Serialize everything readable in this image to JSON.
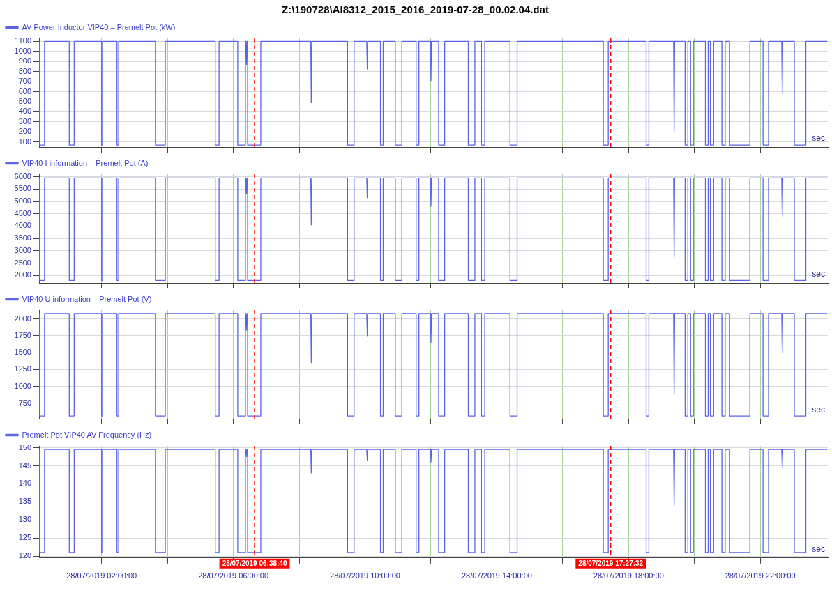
{
  "chart_data": [
    {
      "type": "line",
      "title": "Z:\\190728\\AI8312_2015_2016_2019-07-28_00.02.04.dat",
      "legend": "top left",
      "grid": true,
      "marker": "none",
      "tick_labels": "y",
      "xlim": [
        "2019-07-28T00:06",
        "2019-07-29T00:03"
      ],
      "ylim": [
        50,
        1130
      ],
      "yticks": [
        100,
        200,
        300,
        400,
        500,
        600,
        700,
        800,
        900,
        1000,
        1100
      ],
      "xticks": [
        {
          "value": "2019-07-28T02:00",
          "label": null
        },
        {
          "value": "2019-07-28T04:00",
          "label": null
        },
        {
          "value": "2019-07-28T06:00",
          "label": null
        },
        {
          "value": "2019-07-28T08:00",
          "label": null
        },
        {
          "value": "2019-07-28T10:00",
          "label": null
        },
        {
          "value": "2019-07-28T12:00",
          "label": null
        },
        {
          "value": "2019-07-28T14:00",
          "label": null
        },
        {
          "value": "2019-07-28T16:00",
          "label": null
        },
        {
          "value": "2019-07-28T18:00",
          "label": null
        },
        {
          "value": "2019-07-28T20:00",
          "label": null
        },
        {
          "value": "2019-07-28T22:00",
          "label": null
        }
      ],
      "ref_lines": [
        {
          "axis": "x",
          "value": "2019-07-28T06:38:40",
          "color": "#ff0000",
          "line_style": "dashed"
        },
        {
          "axis": "x",
          "value": "2019-07-28T17:27:32",
          "color": "#ff0000",
          "line_style": "dashed"
        }
      ],
      "annotations": [
        "sec"
      ],
      "x": [
        "2019-07-28T00:06",
        "2019-07-28T00:07",
        "2019-07-28T00:07",
        "2019-07-28T00:16",
        "2019-07-28T00:16",
        "2019-07-28T01:01",
        "2019-07-28T01:01",
        "2019-07-28T01:10",
        "2019-07-28T01:10",
        "2019-07-28T02:00",
        "2019-07-28T02:00",
        "2019-07-28T02:02",
        "2019-07-28T02:02",
        "2019-07-28T02:28",
        "2019-07-28T02:28",
        "2019-07-28T02:31",
        "2019-07-28T02:31",
        "2019-07-28T03:38",
        "2019-07-28T03:38",
        "2019-07-28T03:56",
        "2019-07-28T03:56",
        "2019-07-28T05:27",
        "2019-07-28T05:27",
        "2019-07-28T05:34",
        "2019-07-28T05:34",
        "2019-07-28T06:08",
        "2019-07-28T06:08",
        "2019-07-28T06:22",
        "2019-07-28T06:22",
        "2019-07-28T06:23",
        "2019-07-28T06:24",
        "2019-07-28T06:25",
        "2019-07-28T06:26",
        "2019-07-28T06:26",
        "2019-07-28T06:50",
        "2019-07-28T06:50",
        "2019-07-28T08:21",
        "2019-07-28T08:22",
        "2019-07-28T08:23",
        "2019-07-28T09:28",
        "2019-07-28T09:28",
        "2019-07-28T09:40",
        "2019-07-28T09:40",
        "2019-07-28T10:03",
        "2019-07-28T10:04",
        "2019-07-28T10:05",
        "2019-07-28T10:28",
        "2019-07-28T10:28",
        "2019-07-28T10:33",
        "2019-07-28T10:33",
        "2019-07-28T10:55",
        "2019-07-28T10:55",
        "2019-07-28T11:07",
        "2019-07-28T11:07",
        "2019-07-28T11:33",
        "2019-07-28T11:33",
        "2019-07-28T11:38",
        "2019-07-28T11:38",
        "2019-07-28T11:59",
        "2019-07-28T12:00",
        "2019-07-28T12:01",
        "2019-07-28T12:14",
        "2019-07-28T12:14",
        "2019-07-28T12:25",
        "2019-07-28T12:25",
        "2019-07-28T13:08",
        "2019-07-28T13:08",
        "2019-07-28T13:20",
        "2019-07-28T13:20",
        "2019-07-28T13:32",
        "2019-07-28T13:32",
        "2019-07-28T13:38",
        "2019-07-28T13:38",
        "2019-07-28T14:24",
        "2019-07-28T14:24",
        "2019-07-28T14:37",
        "2019-07-28T14:37",
        "2019-07-28T17:14",
        "2019-07-28T17:14",
        "2019-07-28T17:23",
        "2019-07-28T17:23",
        "2019-07-28T18:32",
        "2019-07-28T18:32",
        "2019-07-28T18:37",
        "2019-07-28T18:37",
        "2019-07-28T19:22",
        "2019-07-28T19:23",
        "2019-07-28T19:24",
        "2019-07-28T19:43",
        "2019-07-28T19:43",
        "2019-07-28T19:48",
        "2019-07-28T19:48",
        "2019-07-28T19:53",
        "2019-07-28T19:53",
        "2019-07-28T19:58",
        "2019-07-28T19:58",
        "2019-07-28T20:20",
        "2019-07-28T20:20",
        "2019-07-28T20:25",
        "2019-07-28T20:25",
        "2019-07-28T20:29",
        "2019-07-28T20:29",
        "2019-07-28T20:35",
        "2019-07-28T20:35",
        "2019-07-28T20:50",
        "2019-07-28T20:50",
        "2019-07-28T20:56",
        "2019-07-28T20:56",
        "2019-07-28T21:04",
        "2019-07-28T21:04",
        "2019-07-28T21:41",
        "2019-07-28T21:41",
        "2019-07-28T22:05",
        "2019-07-28T22:05",
        "2019-07-28T22:15",
        "2019-07-28T22:15",
        "2019-07-28T22:39",
        "2019-07-28T22:40",
        "2019-07-28T22:41",
        "2019-07-28T23:02",
        "2019-07-28T23:02",
        "2019-07-28T23:23",
        "2019-07-28T23:23",
        "2019-07-29T00:02"
      ],
      "series": [
        {
          "name": "AV Power Inductor VIP40 – Premelt Pot (kW)",
          "color": "#5b63e6",
          "values": [
            1100,
            1100,
            70,
            70,
            1100,
            1100,
            70,
            70,
            1100,
            1100,
            70,
            70,
            1100,
            1100,
            70,
            70,
            1100,
            1100,
            70,
            70,
            1100,
            1100,
            70,
            70,
            1100,
            1100,
            70,
            70,
            1100,
            1100,
            870,
            1100,
            1100,
            70,
            70,
            1100,
            1100,
            490,
            1100,
            1100,
            70,
            70,
            1100,
            1100,
            825,
            1100,
            1100,
            70,
            70,
            1100,
            1100,
            70,
            70,
            1100,
            1100,
            70,
            70,
            1100,
            1100,
            710,
            1100,
            1100,
            70,
            70,
            1100,
            1100,
            70,
            70,
            1100,
            1100,
            70,
            70,
            1100,
            1100,
            70,
            70,
            1100,
            1100,
            70,
            70,
            1100,
            1100,
            70,
            70,
            1100,
            1100,
            210,
            1100,
            1100,
            70,
            70,
            1100,
            1100,
            70,
            70,
            1100,
            1100,
            70,
            70,
            1100,
            1100,
            70,
            70,
            1100,
            1100,
            70,
            70,
            1100,
            1100,
            70,
            70,
            1100,
            1100,
            70,
            70,
            1100,
            1100,
            580,
            1100,
            1100,
            70,
            70,
            1100,
            1100
          ]
        }
      ]
    },
    {
      "type": "line",
      "legend": "top left",
      "grid": true,
      "marker": "none",
      "tick_labels": "y",
      "xlim": [
        "2019-07-28T00:06",
        "2019-07-29T00:03"
      ],
      "ylim": [
        1700,
        6100
      ],
      "yticks": [
        2000,
        2500,
        3000,
        3500,
        4000,
        4500,
        5000,
        5500,
        6000
      ],
      "xticks": [
        {
          "value": "2019-07-28T02:00",
          "label": null
        },
        {
          "value": "2019-07-28T04:00",
          "label": null
        },
        {
          "value": "2019-07-28T06:00",
          "label": null
        },
        {
          "value": "2019-07-28T08:00",
          "label": null
        },
        {
          "value": "2019-07-28T10:00",
          "label": null
        },
        {
          "value": "2019-07-28T12:00",
          "label": null
        },
        {
          "value": "2019-07-28T14:00",
          "label": null
        },
        {
          "value": "2019-07-28T16:00",
          "label": null
        },
        {
          "value": "2019-07-28T18:00",
          "label": null
        },
        {
          "value": "2019-07-28T20:00",
          "label": null
        },
        {
          "value": "2019-07-28T22:00",
          "label": null
        }
      ],
      "ref_lines": [
        {
          "axis": "x",
          "value": "2019-07-28T06:38:40",
          "color": "#ff0000",
          "line_style": "dashed"
        },
        {
          "axis": "x",
          "value": "2019-07-28T17:27:32",
          "color": "#ff0000",
          "line_style": "dashed"
        }
      ],
      "annotations": [
        "sec"
      ],
      "x": [
        "2019-07-28T00:06",
        "2019-07-28T00:07",
        "2019-07-28T00:07",
        "2019-07-28T00:16",
        "2019-07-28T00:16",
        "2019-07-28T01:01",
        "2019-07-28T01:01",
        "2019-07-28T01:10",
        "2019-07-28T01:10",
        "2019-07-28T02:00",
        "2019-07-28T02:00",
        "2019-07-28T02:02",
        "2019-07-28T02:02",
        "2019-07-28T02:28",
        "2019-07-28T02:28",
        "2019-07-28T02:31",
        "2019-07-28T02:31",
        "2019-07-28T03:38",
        "2019-07-28T03:38",
        "2019-07-28T03:56",
        "2019-07-28T03:56",
        "2019-07-28T05:27",
        "2019-07-28T05:27",
        "2019-07-28T05:34",
        "2019-07-28T05:34",
        "2019-07-28T06:08",
        "2019-07-28T06:08",
        "2019-07-28T06:22",
        "2019-07-28T06:22",
        "2019-07-28T06:23",
        "2019-07-28T06:24",
        "2019-07-28T06:25",
        "2019-07-28T06:26",
        "2019-07-28T06:26",
        "2019-07-28T06:50",
        "2019-07-28T06:50",
        "2019-07-28T08:21",
        "2019-07-28T08:22",
        "2019-07-28T08:23",
        "2019-07-28T09:28",
        "2019-07-28T09:28",
        "2019-07-28T09:40",
        "2019-07-28T09:40",
        "2019-07-28T10:03",
        "2019-07-28T10:04",
        "2019-07-28T10:05",
        "2019-07-28T10:28",
        "2019-07-28T10:28",
        "2019-07-28T10:33",
        "2019-07-28T10:33",
        "2019-07-28T10:55",
        "2019-07-28T10:55",
        "2019-07-28T11:07",
        "2019-07-28T11:07",
        "2019-07-28T11:33",
        "2019-07-28T11:33",
        "2019-07-28T11:38",
        "2019-07-28T11:38",
        "2019-07-28T11:59",
        "2019-07-28T12:00",
        "2019-07-28T12:01",
        "2019-07-28T12:14",
        "2019-07-28T12:14",
        "2019-07-28T12:25",
        "2019-07-28T12:25",
        "2019-07-28T13:08",
        "2019-07-28T13:08",
        "2019-07-28T13:20",
        "2019-07-28T13:20",
        "2019-07-28T13:32",
        "2019-07-28T13:32",
        "2019-07-28T13:38",
        "2019-07-28T13:38",
        "2019-07-28T14:24",
        "2019-07-28T14:24",
        "2019-07-28T14:37",
        "2019-07-28T14:37",
        "2019-07-28T17:14",
        "2019-07-28T17:14",
        "2019-07-28T17:23",
        "2019-07-28T17:23",
        "2019-07-28T18:32",
        "2019-07-28T18:32",
        "2019-07-28T18:37",
        "2019-07-28T18:37",
        "2019-07-28T19:22",
        "2019-07-28T19:23",
        "2019-07-28T19:24",
        "2019-07-28T19:43",
        "2019-07-28T19:43",
        "2019-07-28T19:48",
        "2019-07-28T19:48",
        "2019-07-28T19:53",
        "2019-07-28T19:53",
        "2019-07-28T19:58",
        "2019-07-28T19:58",
        "2019-07-28T20:20",
        "2019-07-28T20:20",
        "2019-07-28T20:25",
        "2019-07-28T20:25",
        "2019-07-28T20:29",
        "2019-07-28T20:29",
        "2019-07-28T20:35",
        "2019-07-28T20:35",
        "2019-07-28T20:50",
        "2019-07-28T20:50",
        "2019-07-28T20:56",
        "2019-07-28T20:56",
        "2019-07-28T21:04",
        "2019-07-28T21:04",
        "2019-07-28T21:41",
        "2019-07-28T21:41",
        "2019-07-28T22:05",
        "2019-07-28T22:05",
        "2019-07-28T22:15",
        "2019-07-28T22:15",
        "2019-07-28T22:39",
        "2019-07-28T22:40",
        "2019-07-28T22:41",
        "2019-07-28T23:02",
        "2019-07-28T23:02",
        "2019-07-28T23:23",
        "2019-07-28T23:23",
        "2019-07-29T00:02"
      ],
      "series": [
        {
          "name": "VIP40 I information – Premelt Pot (A)",
          "color": "#5b63e6",
          "values": [
            5950,
            5950,
            1800,
            1800,
            5950,
            5950,
            1800,
            1800,
            5950,
            5950,
            1800,
            1800,
            5950,
            5950,
            1800,
            1800,
            5950,
            5950,
            1800,
            1800,
            5950,
            5950,
            1800,
            1800,
            5950,
            5950,
            1800,
            1800,
            5950,
            5950,
            5300,
            5950,
            5950,
            1800,
            1800,
            5950,
            5950,
            4050,
            5950,
            5950,
            1800,
            1800,
            5950,
            5950,
            5150,
            5950,
            5950,
            1800,
            1800,
            5950,
            5950,
            1800,
            1800,
            5950,
            5950,
            1800,
            1800,
            5950,
            5950,
            4800,
            5950,
            5950,
            1800,
            1800,
            5950,
            5950,
            1800,
            1800,
            5950,
            5950,
            1800,
            1800,
            5950,
            5950,
            1800,
            1800,
            5950,
            5950,
            1800,
            1800,
            5950,
            5950,
            1800,
            1800,
            5950,
            5950,
            2750,
            5950,
            5950,
            1800,
            1800,
            5950,
            5950,
            1800,
            1800,
            5950,
            5950,
            1800,
            1800,
            5950,
            5950,
            1800,
            1800,
            5950,
            5950,
            1800,
            1800,
            5950,
            5950,
            1800,
            1800,
            5950,
            5950,
            1800,
            1800,
            5950,
            5950,
            4400,
            5950,
            5950,
            1800,
            1800,
            5950,
            5950
          ]
        }
      ]
    },
    {
      "type": "line",
      "legend": "top left",
      "grid": true,
      "marker": "none",
      "tick_labels": "y",
      "xlim": [
        "2019-07-28T00:06",
        "2019-07-29T00:03"
      ],
      "ylim": [
        520,
        2130
      ],
      "yticks": [
        750,
        1000,
        1250,
        1500,
        1750,
        2000
      ],
      "xticks": [
        {
          "value": "2019-07-28T02:00",
          "label": null
        },
        {
          "value": "2019-07-28T04:00",
          "label": null
        },
        {
          "value": "2019-07-28T06:00",
          "label": null
        },
        {
          "value": "2019-07-28T08:00",
          "label": null
        },
        {
          "value": "2019-07-28T10:00",
          "label": null
        },
        {
          "value": "2019-07-28T12:00",
          "label": null
        },
        {
          "value": "2019-07-28T14:00",
          "label": null
        },
        {
          "value": "2019-07-28T16:00",
          "label": null
        },
        {
          "value": "2019-07-28T18:00",
          "label": null
        },
        {
          "value": "2019-07-28T20:00",
          "label": null
        },
        {
          "value": "2019-07-28T22:00",
          "label": null
        }
      ],
      "ref_lines": [
        {
          "axis": "x",
          "value": "2019-07-28T06:38:40",
          "color": "#ff0000",
          "line_style": "dashed"
        },
        {
          "axis": "x",
          "value": "2019-07-28T17:27:32",
          "color": "#ff0000",
          "line_style": "dashed"
        }
      ],
      "annotations": [
        "sec"
      ],
      "x": [
        "2019-07-28T00:06",
        "2019-07-28T00:07",
        "2019-07-28T00:07",
        "2019-07-28T00:16",
        "2019-07-28T00:16",
        "2019-07-28T01:01",
        "2019-07-28T01:01",
        "2019-07-28T01:10",
        "2019-07-28T01:10",
        "2019-07-28T02:00",
        "2019-07-28T02:00",
        "2019-07-28T02:02",
        "2019-07-28T02:02",
        "2019-07-28T02:28",
        "2019-07-28T02:28",
        "2019-07-28T02:31",
        "2019-07-28T02:31",
        "2019-07-28T03:38",
        "2019-07-28T03:38",
        "2019-07-28T03:56",
        "2019-07-28T03:56",
        "2019-07-28T05:27",
        "2019-07-28T05:27",
        "2019-07-28T05:34",
        "2019-07-28T05:34",
        "2019-07-28T06:08",
        "2019-07-28T06:08",
        "2019-07-28T06:22",
        "2019-07-28T06:22",
        "2019-07-28T06:23",
        "2019-07-28T06:24",
        "2019-07-28T06:25",
        "2019-07-28T06:26",
        "2019-07-28T06:26",
        "2019-07-28T06:50",
        "2019-07-28T06:50",
        "2019-07-28T08:21",
        "2019-07-28T08:22",
        "2019-07-28T08:23",
        "2019-07-28T09:28",
        "2019-07-28T09:28",
        "2019-07-28T09:40",
        "2019-07-28T09:40",
        "2019-07-28T10:03",
        "2019-07-28T10:04",
        "2019-07-28T10:05",
        "2019-07-28T10:28",
        "2019-07-28T10:28",
        "2019-07-28T10:33",
        "2019-07-28T10:33",
        "2019-07-28T10:55",
        "2019-07-28T10:55",
        "2019-07-28T11:07",
        "2019-07-28T11:07",
        "2019-07-28T11:33",
        "2019-07-28T11:33",
        "2019-07-28T11:38",
        "2019-07-28T11:38",
        "2019-07-28T11:59",
        "2019-07-28T12:00",
        "2019-07-28T12:01",
        "2019-07-28T12:14",
        "2019-07-28T12:14",
        "2019-07-28T12:25",
        "2019-07-28T12:25",
        "2019-07-28T13:08",
        "2019-07-28T13:08",
        "2019-07-28T13:20",
        "2019-07-28T13:20",
        "2019-07-28T13:32",
        "2019-07-28T13:32",
        "2019-07-28T13:38",
        "2019-07-28T13:38",
        "2019-07-28T14:24",
        "2019-07-28T14:24",
        "2019-07-28T14:37",
        "2019-07-28T14:37",
        "2019-07-28T17:14",
        "2019-07-28T17:14",
        "2019-07-28T17:23",
        "2019-07-28T17:23",
        "2019-07-28T18:32",
        "2019-07-28T18:32",
        "2019-07-28T18:37",
        "2019-07-28T18:37",
        "2019-07-28T19:22",
        "2019-07-28T19:23",
        "2019-07-28T19:24",
        "2019-07-28T19:43",
        "2019-07-28T19:43",
        "2019-07-28T19:48",
        "2019-07-28T19:48",
        "2019-07-28T19:53",
        "2019-07-28T19:53",
        "2019-07-28T19:58",
        "2019-07-28T19:58",
        "2019-07-28T20:20",
        "2019-07-28T20:20",
        "2019-07-28T20:25",
        "2019-07-28T20:25",
        "2019-07-28T20:29",
        "2019-07-28T20:29",
        "2019-07-28T20:35",
        "2019-07-28T20:35",
        "2019-07-28T20:50",
        "2019-07-28T20:50",
        "2019-07-28T20:56",
        "2019-07-28T20:56",
        "2019-07-28T21:04",
        "2019-07-28T21:04",
        "2019-07-28T21:41",
        "2019-07-28T21:41",
        "2019-07-28T22:05",
        "2019-07-28T22:05",
        "2019-07-28T22:15",
        "2019-07-28T22:15",
        "2019-07-28T22:39",
        "2019-07-28T22:40",
        "2019-07-28T22:41",
        "2019-07-28T23:02",
        "2019-07-28T23:02",
        "2019-07-28T23:23",
        "2019-07-28T23:23",
        "2019-07-29T00:02"
      ],
      "series": [
        {
          "name": "VIP40 U information – Premelt Pot (V)",
          "color": "#5b63e6",
          "values": [
            2080,
            2080,
            560,
            560,
            2080,
            2080,
            560,
            560,
            2080,
            2080,
            560,
            560,
            2080,
            2080,
            560,
            560,
            2080,
            2080,
            560,
            560,
            2080,
            2080,
            560,
            560,
            2080,
            2080,
            560,
            560,
            2080,
            2080,
            1830,
            2080,
            2080,
            560,
            560,
            2080,
            2080,
            1350,
            2080,
            2080,
            560,
            560,
            2080,
            2080,
            1750,
            2080,
            2080,
            560,
            560,
            2080,
            2080,
            560,
            560,
            2080,
            2080,
            560,
            560,
            2080,
            2080,
            1650,
            2080,
            2080,
            560,
            560,
            2080,
            2080,
            560,
            560,
            2080,
            2080,
            560,
            560,
            2080,
            2080,
            560,
            560,
            2080,
            2080,
            560,
            560,
            2080,
            2080,
            560,
            560,
            2080,
            2080,
            880,
            2080,
            2080,
            560,
            560,
            2080,
            2080,
            560,
            560,
            2080,
            2080,
            560,
            560,
            2080,
            2080,
            560,
            560,
            2080,
            2080,
            560,
            560,
            2080,
            2080,
            560,
            560,
            2080,
            2080,
            560,
            560,
            2080,
            2080,
            1500,
            2080,
            2080,
            560,
            560,
            2080,
            2080
          ]
        }
      ]
    },
    {
      "type": "line",
      "legend": "top left",
      "grid": true,
      "marker": "none",
      "xlim": [
        "2019-07-28T00:06",
        "2019-07-29T00:03"
      ],
      "ylim": [
        119.5,
        150.5
      ],
      "yticks": [
        120,
        125,
        130,
        135,
        140,
        145,
        150
      ],
      "xticks": [
        {
          "value": "2019-07-28T02:00",
          "label": "28/07/2019 02:00:00"
        },
        {
          "value": "2019-07-28T04:00",
          "label": null
        },
        {
          "value": "2019-07-28T06:00",
          "label": "28/07/2019 06:00:00"
        },
        {
          "value": "2019-07-28T08:00",
          "label": null
        },
        {
          "value": "2019-07-28T10:00",
          "label": "28/07/2019 10:00:00"
        },
        {
          "value": "2019-07-28T12:00",
          "label": null
        },
        {
          "value": "2019-07-28T14:00",
          "label": "28/07/2019 14:00:00"
        },
        {
          "value": "2019-07-28T16:00",
          "label": null
        },
        {
          "value": "2019-07-28T18:00",
          "label": "28/07/2019 18:00:00"
        },
        {
          "value": "2019-07-28T20:00",
          "label": null
        },
        {
          "value": "2019-07-28T22:00",
          "label": "28/07/2019 22:00:00"
        }
      ],
      "ref_lines": [
        {
          "axis": "x",
          "value": "2019-07-28T06:38:40",
          "label": "28/07/2019 06:38:40",
          "color": "#ff0000",
          "line_style": "dashed"
        },
        {
          "axis": "x",
          "value": "2019-07-28T17:27:32",
          "label": "28/07/2019 17:27:32",
          "color": "#ff0000",
          "line_style": "dashed"
        }
      ],
      "annotations": [
        "sec"
      ],
      "x": [
        "2019-07-28T00:06",
        "2019-07-28T00:07",
        "2019-07-28T00:07",
        "2019-07-28T00:16",
        "2019-07-28T00:16",
        "2019-07-28T01:01",
        "2019-07-28T01:01",
        "2019-07-28T01:10",
        "2019-07-28T01:10",
        "2019-07-28T02:00",
        "2019-07-28T02:00",
        "2019-07-28T02:02",
        "2019-07-28T02:02",
        "2019-07-28T02:28",
        "2019-07-28T02:28",
        "2019-07-28T02:31",
        "2019-07-28T02:31",
        "2019-07-28T03:38",
        "2019-07-28T03:38",
        "2019-07-28T03:56",
        "2019-07-28T03:56",
        "2019-07-28T05:27",
        "2019-07-28T05:27",
        "2019-07-28T05:34",
        "2019-07-28T05:34",
        "2019-07-28T06:08",
        "2019-07-28T06:08",
        "2019-07-28T06:22",
        "2019-07-28T06:22",
        "2019-07-28T06:23",
        "2019-07-28T06:24",
        "2019-07-28T06:25",
        "2019-07-28T06:26",
        "2019-07-28T06:26",
        "2019-07-28T06:50",
        "2019-07-28T06:50",
        "2019-07-28T08:21",
        "2019-07-28T08:22",
        "2019-07-28T08:23",
        "2019-07-28T09:28",
        "2019-07-28T09:28",
        "2019-07-28T09:40",
        "2019-07-28T09:40",
        "2019-07-28T10:03",
        "2019-07-28T10:04",
        "2019-07-28T10:05",
        "2019-07-28T10:28",
        "2019-07-28T10:28",
        "2019-07-28T10:33",
        "2019-07-28T10:33",
        "2019-07-28T10:55",
        "2019-07-28T10:55",
        "2019-07-28T11:07",
        "2019-07-28T11:07",
        "2019-07-28T11:33",
        "2019-07-28T11:33",
        "2019-07-28T11:38",
        "2019-07-28T11:38",
        "2019-07-28T11:59",
        "2019-07-28T12:00",
        "2019-07-28T12:01",
        "2019-07-28T12:14",
        "2019-07-28T12:14",
        "2019-07-28T12:25",
        "2019-07-28T12:25",
        "2019-07-28T13:08",
        "2019-07-28T13:08",
        "2019-07-28T13:20",
        "2019-07-28T13:20",
        "2019-07-28T13:32",
        "2019-07-28T13:32",
        "2019-07-28T13:38",
        "2019-07-28T13:38",
        "2019-07-28T14:24",
        "2019-07-28T14:24",
        "2019-07-28T14:37",
        "2019-07-28T14:37",
        "2019-07-28T17:14",
        "2019-07-28T17:14",
        "2019-07-28T17:23",
        "2019-07-28T17:23",
        "2019-07-28T18:32",
        "2019-07-28T18:32",
        "2019-07-28T18:37",
        "2019-07-28T18:37",
        "2019-07-28T19:22",
        "2019-07-28T19:23",
        "2019-07-28T19:24",
        "2019-07-28T19:43",
        "2019-07-28T19:43",
        "2019-07-28T19:48",
        "2019-07-28T19:48",
        "2019-07-28T19:53",
        "2019-07-28T19:53",
        "2019-07-28T19:58",
        "2019-07-28T19:58",
        "2019-07-28T20:20",
        "2019-07-28T20:20",
        "2019-07-28T20:25",
        "2019-07-28T20:25",
        "2019-07-28T20:29",
        "2019-07-28T20:29",
        "2019-07-28T20:35",
        "2019-07-28T20:35",
        "2019-07-28T20:50",
        "2019-07-28T20:50",
        "2019-07-28T20:56",
        "2019-07-28T20:56",
        "2019-07-28T21:04",
        "2019-07-28T21:04",
        "2019-07-28T21:41",
        "2019-07-28T21:41",
        "2019-07-28T22:05",
        "2019-07-28T22:05",
        "2019-07-28T22:15",
        "2019-07-28T22:15",
        "2019-07-28T22:39",
        "2019-07-28T22:40",
        "2019-07-28T22:41",
        "2019-07-28T23:02",
        "2019-07-28T23:02",
        "2019-07-28T23:23",
        "2019-07-28T23:23",
        "2019-07-29T00:02"
      ],
      "series": [
        {
          "name": "Premelt Pot VIP40 AV Frequency (Hz)",
          "color": "#5b63e6",
          "values": [
            149.5,
            149.5,
            121,
            121,
            149.5,
            149.5,
            121,
            121,
            149.5,
            149.5,
            121,
            121,
            149.5,
            149.5,
            121,
            121,
            149.5,
            149.5,
            121,
            121,
            149.5,
            149.5,
            121,
            121,
            149.5,
            149.5,
            121,
            121,
            149.5,
            149.5,
            147.5,
            149.5,
            149.5,
            121,
            121,
            149.5,
            149.5,
            143,
            149.5,
            149.5,
            121,
            121,
            149.5,
            149.5,
            146.5,
            149.5,
            149.5,
            121,
            121,
            149.5,
            149.5,
            121,
            121,
            149.5,
            149.5,
            121,
            121,
            149.5,
            149.5,
            146,
            149.5,
            149.5,
            121,
            121,
            149.5,
            149.5,
            121,
            121,
            149.5,
            149.5,
            121,
            121,
            149.5,
            149.5,
            121,
            121,
            149.5,
            149.5,
            121,
            121,
            149.5,
            149.5,
            121,
            121,
            149.5,
            149.5,
            134,
            149.5,
            149.5,
            121,
            121,
            149.5,
            149.5,
            121,
            121,
            149.5,
            149.5,
            121,
            121,
            149.5,
            149.5,
            121,
            121,
            149.5,
            149.5,
            121,
            121,
            149.5,
            149.5,
            121,
            121,
            149.5,
            149.5,
            121,
            121,
            149.5,
            149.5,
            144.5,
            149.5,
            149.5,
            121,
            121,
            149.5,
            149.5
          ]
        }
      ]
    }
  ]
}
